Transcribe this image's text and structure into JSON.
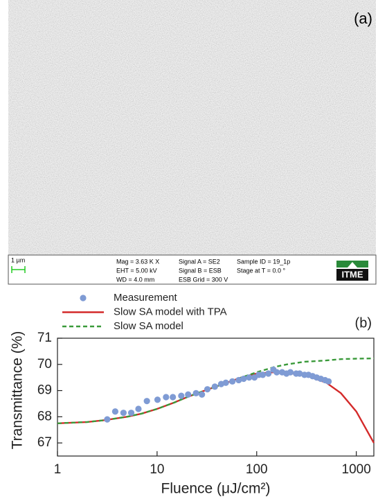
{
  "sem_image": {
    "label": "(a)",
    "scale_bar": "1 µm",
    "info": [
      "Mag = 3.63 K X",
      "EHT = 5.00 kV",
      "WD = 4.0 mm",
      "Signal A = SE2",
      "Signal B = ESB",
      "ESB Grid = 300 V",
      "Sample ID = 19_1p",
      "Stage at T = 0.0 °"
    ],
    "logo": "ITME"
  },
  "chart_data": {
    "type": "line",
    "panel_label": "(b)",
    "xlabel": "Fluence (μJ/cm²)",
    "ylabel": "Transmittance (%)",
    "xscale": "log",
    "xlim": [
      1,
      1500
    ],
    "ylim": [
      66.5,
      71
    ],
    "xticks": [
      1,
      10,
      100,
      1000
    ],
    "yticks": [
      67,
      68,
      69,
      70,
      71
    ],
    "series": [
      {
        "name": "Measurement",
        "color": "#7f9bd4",
        "style": "marker",
        "x": [
          3.16,
          3.8,
          4.6,
          5.5,
          6.5,
          7.9,
          10.1,
          12.3,
          14.4,
          17.5,
          20.5,
          24.6,
          28.2,
          32,
          38,
          44,
          49,
          57,
          66,
          74,
          84,
          95,
          105,
          115,
          131,
          147,
          159,
          180,
          199,
          218,
          249,
          270,
          302,
          331,
          364,
          400,
          440,
          486,
          527
        ],
        "values": [
          67.9,
          68.2,
          68.15,
          68.15,
          68.3,
          68.6,
          68.65,
          68.75,
          68.75,
          68.8,
          68.85,
          68.9,
          68.85,
          69.05,
          69.15,
          69.25,
          69.3,
          69.35,
          69.4,
          69.45,
          69.5,
          69.5,
          69.6,
          69.6,
          69.65,
          69.8,
          69.7,
          69.7,
          69.65,
          69.7,
          69.65,
          69.65,
          69.6,
          69.6,
          69.55,
          69.5,
          69.45,
          69.4,
          69.35
        ]
      },
      {
        "name": "Slow SA model with TPA",
        "color": "#d42a2a",
        "style": "solid",
        "x": [
          1,
          2,
          3,
          5,
          7,
          10,
          15,
          20,
          30,
          50,
          70,
          100,
          150,
          200,
          300,
          500,
          700,
          1000,
          1500
        ],
        "values": [
          67.75,
          67.8,
          67.87,
          68.0,
          68.12,
          68.3,
          68.55,
          68.75,
          69.0,
          69.3,
          69.5,
          69.65,
          69.7,
          69.68,
          69.6,
          69.3,
          68.9,
          68.2,
          67.0
        ]
      },
      {
        "name": "Slow SA model",
        "color": "#3a9a3a",
        "style": "dashed",
        "x": [
          1,
          2,
          3,
          5,
          7,
          10,
          15,
          20,
          30,
          50,
          70,
          100,
          150,
          200,
          300,
          500,
          700,
          1000,
          1500
        ],
        "values": [
          67.75,
          67.8,
          67.87,
          68.0,
          68.12,
          68.3,
          68.55,
          68.75,
          69.0,
          69.3,
          69.5,
          69.7,
          69.9,
          70.0,
          70.1,
          70.15,
          70.2,
          70.22,
          70.23
        ]
      }
    ]
  }
}
